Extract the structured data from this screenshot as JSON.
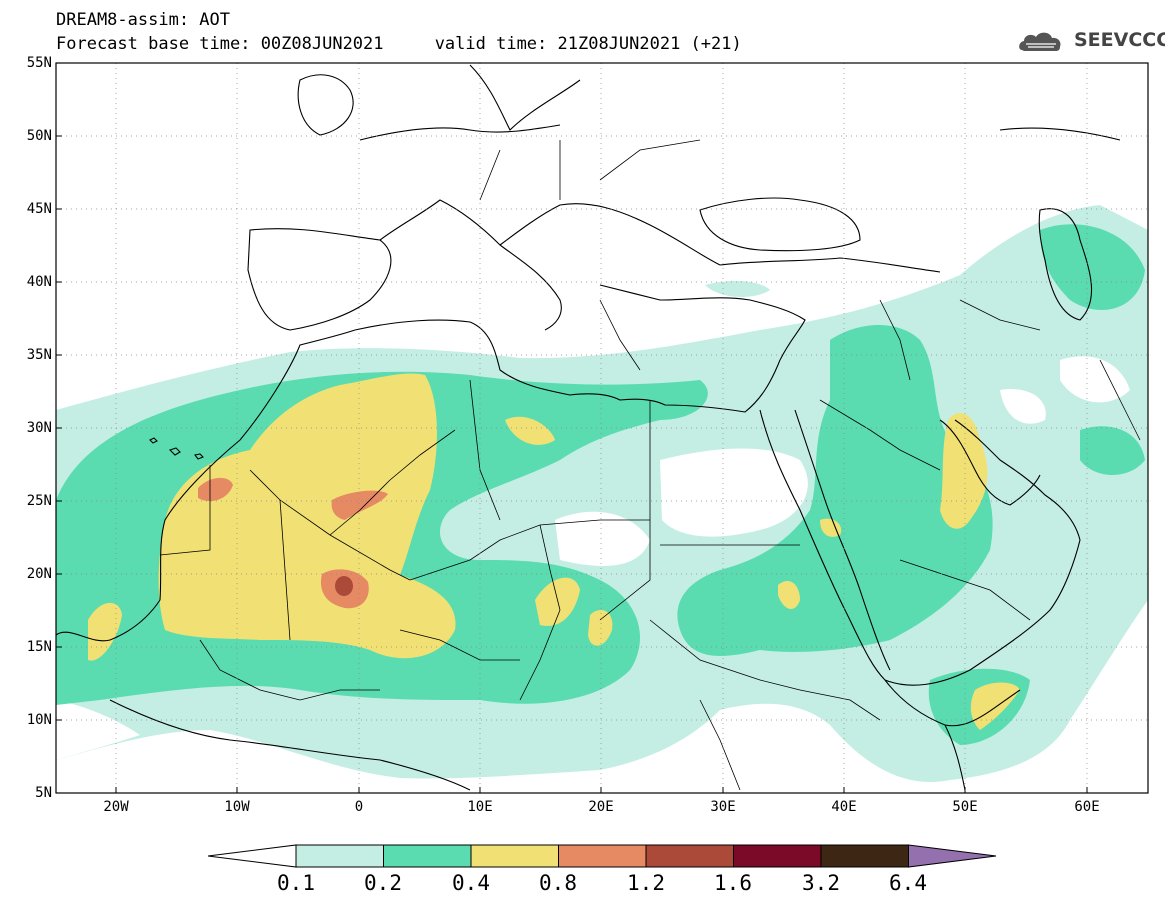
{
  "header": {
    "line1": "DREAM8-assim: AOT",
    "line2": "Forecast base time: 00Z08JUN2021     valid time: 21Z08JUN2021 (+21)"
  },
  "logo": {
    "text": "SEEVCCC",
    "icon": "cloud-icon"
  },
  "map": {
    "lat_labels": [
      "55N",
      "50N",
      "45N",
      "40N",
      "35N",
      "30N",
      "25N",
      "20N",
      "15N",
      "10N",
      "5N"
    ],
    "lon_labels": [
      "20W",
      "10W",
      "0",
      "10E",
      "20E",
      "30E",
      "40E",
      "50E",
      "60E"
    ],
    "lat_range": [
      5,
      55
    ],
    "lon_range": [
      -25,
      65
    ],
    "gridlines": "dotted"
  },
  "colorbar": {
    "labels": [
      "0.1",
      "0.2",
      "0.4",
      "0.8",
      "1.2",
      "1.6",
      "3.2",
      "6.4"
    ],
    "colors": [
      "#ffffff",
      "#c4eee4",
      "#5adcb0",
      "#f1e174",
      "#e68a64",
      "#ac4a3a",
      "#7a0a28",
      "#3e2614",
      "#9471ae"
    ]
  }
}
